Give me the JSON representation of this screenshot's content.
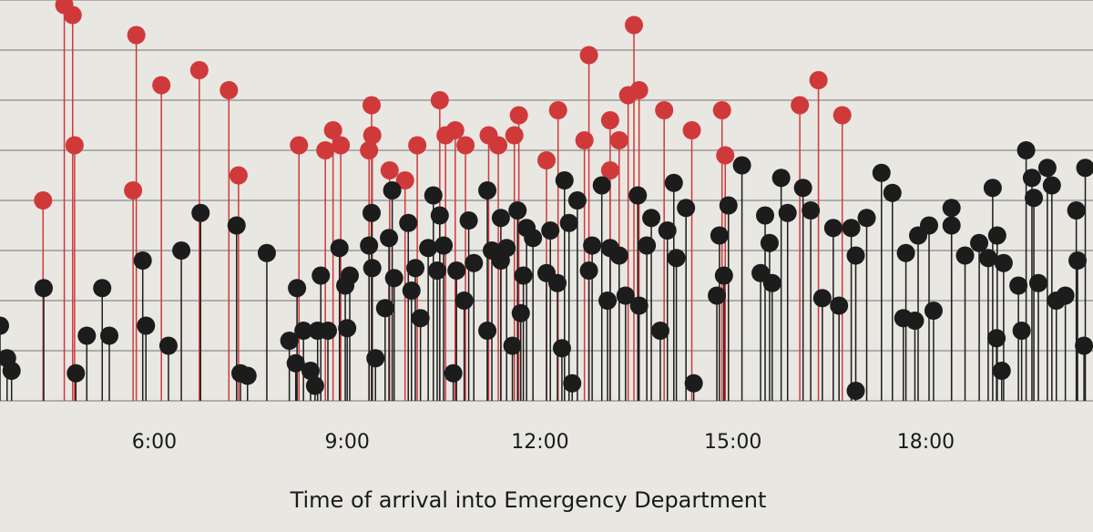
{
  "chart_data": {
    "type": "lollipop",
    "x_label": "Time of arrival into Emergency Department",
    "xlim": [
      3.6,
      20.6
    ],
    "xticks": [
      {
        "value": 6,
        "label": "6:00"
      },
      {
        "value": 9,
        "label": "9:00"
      },
      {
        "value": 12,
        "label": "12:00"
      },
      {
        "value": 15,
        "label": "15:00"
      },
      {
        "value": 18,
        "label": "18:00"
      }
    ],
    "ylim": [
      0,
      8
    ],
    "yticks": [
      0,
      1,
      2,
      3,
      4,
      5,
      6,
      7,
      8
    ],
    "grid": true,
    "series": [
      {
        "color": "#d0393a",
        "x": [
          4.6,
          4.73,
          4.27,
          4.76,
          5.72,
          5.67,
          6.11,
          6.7,
          7.16,
          7.31,
          8.25,
          8.78,
          8.66,
          8.9,
          9.38,
          9.39,
          9.34,
          9.66,
          9.9,
          10.09,
          10.44,
          10.53,
          10.68,
          10.84,
          11.2,
          11.35,
          11.6,
          11.67,
          12.1,
          12.28,
          12.69,
          12.76,
          13.09,
          13.09,
          13.23,
          13.37,
          13.46,
          13.54,
          13.93,
          14.36,
          14.83,
          14.88,
          16.04,
          16.33,
          16.7
        ],
        "values": [
          7.9,
          7.7,
          4.0,
          5.1,
          7.3,
          4.2,
          6.3,
          6.6,
          6.2,
          4.5,
          5.1,
          5.4,
          5.0,
          5.1,
          5.9,
          5.3,
          5.0,
          4.6,
          4.4,
          5.1,
          6.0,
          5.3,
          5.4,
          5.1,
          5.3,
          5.1,
          5.3,
          5.7,
          4.8,
          5.8,
          5.2,
          6.9,
          5.6,
          4.6,
          5.2,
          6.1,
          7.5,
          6.2,
          5.8,
          5.4,
          5.8,
          4.9,
          5.9,
          6.4,
          5.7
        ]
      },
      {
        "color": "#1c1c1c",
        "x": [
          3.6,
          3.71,
          3.78,
          4.28,
          4.78,
          4.95,
          5.19,
          5.3,
          5.82,
          5.87,
          6.22,
          6.42,
          6.72,
          7.28,
          7.34,
          7.45,
          7.75,
          8.1,
          8.22,
          8.2,
          8.32,
          8.43,
          8.5,
          8.54,
          8.59,
          8.7,
          8.88,
          8.97,
          9.0,
          9.04,
          9.34,
          9.38,
          9.39,
          9.44,
          9.59,
          9.65,
          9.7,
          9.73,
          9.95,
          10.0,
          10.06,
          10.14,
          10.26,
          10.34,
          10.4,
          10.44,
          10.5,
          10.65,
          10.7,
          10.82,
          10.89,
          10.97,
          11.18,
          11.18,
          11.25,
          11.39,
          11.39,
          11.48,
          11.57,
          11.65,
          11.7,
          11.74,
          11.79,
          11.89,
          12.1,
          12.16,
          12.27,
          12.34,
          12.38,
          12.45,
          12.5,
          12.58,
          12.76,
          12.81,
          12.96,
          13.05,
          13.09,
          13.23,
          13.33,
          13.52,
          13.54,
          13.66,
          13.73,
          13.87,
          13.98,
          14.08,
          14.12,
          14.27,
          14.39,
          14.75,
          14.79,
          14.86,
          14.93,
          15.14,
          15.43,
          15.5,
          15.57,
          15.61,
          15.75,
          15.85,
          16.09,
          16.21,
          16.39,
          16.56,
          16.65,
          16.84,
          16.91,
          16.91,
          17.08,
          17.31,
          17.48,
          17.69,
          17.65,
          17.83,
          17.88,
          18.05,
          18.12,
          18.4,
          18.4,
          18.61,
          18.83,
          18.97,
          19.04,
          19.1,
          19.11,
          19.18,
          19.21,
          19.44,
          19.49,
          19.56,
          19.65,
          19.68,
          19.75,
          19.89,
          19.96,
          20.03,
          20.17,
          20.34,
          20.36,
          20.46,
          20.48
        ],
        "values": [
          1.5,
          0.85,
          0.6,
          2.25,
          0.55,
          1.3,
          2.25,
          1.3,
          2.8,
          1.5,
          1.1,
          3.0,
          3.75,
          3.5,
          0.55,
          0.5,
          2.95,
          1.2,
          2.25,
          0.75,
          1.4,
          0.6,
          0.3,
          1.4,
          2.5,
          1.4,
          3.05,
          2.3,
          1.45,
          2.5,
          3.1,
          3.75,
          2.65,
          0.85,
          1.85,
          3.25,
          4.2,
          2.45,
          3.55,
          2.2,
          2.65,
          1.65,
          3.05,
          4.1,
          2.6,
          3.7,
          3.1,
          0.55,
          2.6,
          2.0,
          3.6,
          2.75,
          4.2,
          1.4,
          3.0,
          3.65,
          2.8,
          3.05,
          1.1,
          3.8,
          1.75,
          2.5,
          3.45,
          3.25,
          2.55,
          3.4,
          2.35,
          1.05,
          4.4,
          3.55,
          0.35,
          4.0,
          2.6,
          3.1,
          4.3,
          2.0,
          3.05,
          2.9,
          2.1,
          4.1,
          1.9,
          3.1,
          3.65,
          1.4,
          3.4,
          4.35,
          2.85,
          3.85,
          0.35,
          2.1,
          3.3,
          2.5,
          3.9,
          4.7,
          2.55,
          3.7,
          3.15,
          2.35,
          4.45,
          3.75,
          4.25,
          3.8,
          2.05,
          3.45,
          1.9,
          3.45,
          2.9,
          0.2,
          3.65,
          4.55,
          4.15,
          2.95,
          1.65,
          1.6,
          3.3,
          3.5,
          1.8,
          3.85,
          3.5,
          2.9,
          3.15,
          2.85,
          4.25,
          1.25,
          3.3,
          0.6,
          2.75,
          2.3,
          1.4,
          5.0,
          4.45,
          4.05,
          2.35,
          4.65,
          4.3,
          2.0,
          2.1,
          3.8,
          2.8,
          1.1,
          4.65
        ]
      }
    ]
  }
}
